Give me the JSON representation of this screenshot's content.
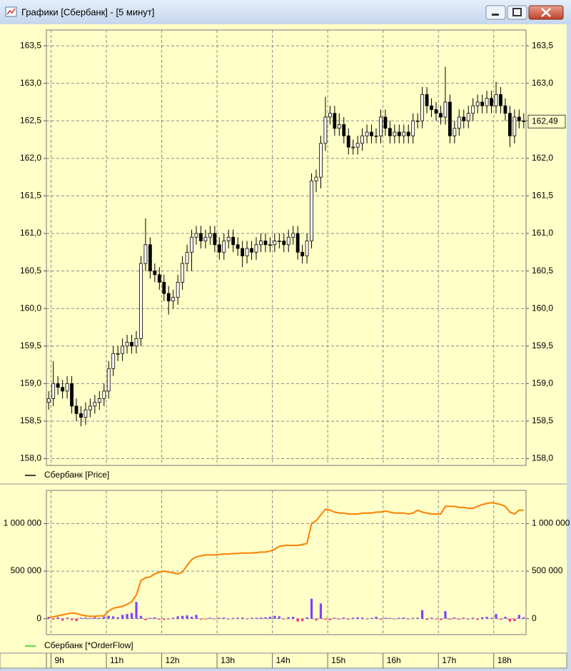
{
  "window_title": "Графики [Сбербанк] - [5 минут]",
  "chart_data": [
    {
      "type": "candlestick",
      "legend": {
        "label": "Сбербанк [Price]",
        "color": "#000000"
      },
      "up_color": "#ffffff",
      "down_color": "#000000",
      "ylim": [
        157.91,
        163.71
      ],
      "yticks": [
        {
          "value": 158,
          "label": "158,0"
        },
        {
          "value": 158.5,
          "label": "158,5"
        },
        {
          "value": 159,
          "label": "159,0"
        },
        {
          "value": 159.5,
          "label": "159,5"
        },
        {
          "value": 160,
          "label": "160,0"
        },
        {
          "value": 160.5,
          "label": "160,5"
        },
        {
          "value": 161,
          "label": "161,0"
        },
        {
          "value": 161.5,
          "label": "161,5"
        },
        {
          "value": 162,
          "label": "162,0"
        },
        {
          "value": 162.5,
          "label": "162,5"
        },
        {
          "value": 163,
          "label": "163,0"
        },
        {
          "value": 163.5,
          "label": "163,5"
        }
      ],
      "grid": true,
      "last_label": {
        "value": 162.49,
        "label": "162,49"
      },
      "open": [
        158.75,
        158.8,
        159.0,
        158.95,
        158.9,
        159.0,
        158.7,
        158.6,
        158.55,
        158.65,
        158.7,
        158.75,
        158.8,
        158.9,
        159.2,
        159.4,
        159.4,
        159.5,
        159.55,
        159.5,
        159.6,
        160.6,
        160.85,
        160.5,
        160.45,
        160.35,
        160.2,
        160.1,
        160.15,
        160.35,
        160.6,
        160.75,
        160.95,
        161.0,
        160.9,
        160.95,
        161.0,
        160.85,
        160.75,
        160.9,
        160.95,
        160.85,
        160.8,
        160.7,
        160.8,
        160.75,
        160.85,
        160.9,
        160.85,
        160.85,
        160.9,
        160.9,
        160.85,
        160.95,
        161.0,
        160.75,
        160.7,
        160.9,
        161.7,
        161.75,
        162.2,
        162.55,
        162.6,
        162.4,
        162.45,
        162.3,
        162.15,
        162.15,
        162.2,
        162.3,
        162.35,
        162.3,
        162.3,
        162.55,
        162.4,
        162.3,
        162.35,
        162.3,
        162.35,
        162.3,
        162.5,
        162.5,
        162.85,
        162.7,
        162.65,
        162.6,
        162.55,
        162.75,
        162.3,
        162.4,
        162.55,
        162.5,
        162.6,
        162.7,
        162.75,
        162.7,
        162.8,
        162.7,
        162.85,
        162.7,
        162.6,
        162.3,
        162.55,
        162.5
      ],
      "high": [
        158.9,
        159.3,
        159.1,
        159.05,
        159.1,
        159.1,
        158.8,
        158.7,
        158.75,
        158.8,
        158.85,
        158.9,
        159.0,
        159.3,
        159.5,
        159.5,
        159.6,
        159.65,
        159.65,
        159.7,
        160.7,
        161.2,
        160.95,
        160.6,
        160.55,
        160.45,
        160.3,
        160.25,
        160.45,
        160.7,
        160.85,
        161.05,
        161.1,
        161.1,
        161.05,
        161.1,
        161.1,
        160.95,
        161.0,
        161.05,
        161.05,
        160.95,
        160.9,
        160.9,
        160.9,
        160.95,
        161.0,
        161.0,
        160.95,
        161.0,
        161.0,
        161.0,
        161.05,
        161.1,
        161.1,
        160.85,
        161.0,
        161.8,
        161.85,
        162.3,
        162.82,
        162.7,
        162.7,
        162.6,
        162.55,
        162.4,
        162.25,
        162.3,
        162.4,
        162.45,
        162.45,
        162.4,
        162.65,
        162.65,
        162.5,
        162.45,
        162.45,
        162.45,
        162.45,
        162.6,
        162.6,
        162.95,
        162.95,
        162.8,
        162.75,
        162.7,
        163.22,
        162.85,
        162.5,
        162.65,
        162.65,
        162.7,
        162.8,
        162.85,
        162.85,
        162.9,
        162.9,
        163.02,
        162.95,
        162.8,
        162.7,
        162.65,
        162.65,
        162.6
      ],
      "low": [
        158.65,
        158.7,
        158.85,
        158.8,
        158.8,
        158.6,
        158.5,
        158.43,
        158.45,
        158.55,
        158.6,
        158.65,
        158.7,
        158.8,
        159.1,
        159.3,
        159.3,
        159.4,
        159.4,
        159.4,
        159.5,
        160.5,
        160.4,
        160.35,
        160.25,
        160.1,
        159.92,
        160.0,
        160.05,
        160.25,
        160.5,
        160.5,
        160.85,
        160.8,
        160.8,
        160.85,
        160.75,
        160.65,
        160.65,
        160.8,
        160.75,
        160.7,
        160.55,
        160.6,
        160.65,
        160.65,
        160.75,
        160.75,
        160.75,
        160.75,
        160.8,
        160.75,
        160.75,
        160.85,
        160.65,
        160.6,
        160.6,
        160.8,
        161.55,
        161.6,
        162.1,
        162.45,
        162.3,
        162.3,
        162.2,
        162.05,
        162.05,
        162.05,
        162.1,
        162.2,
        162.2,
        162.2,
        162.2,
        162.3,
        162.2,
        162.2,
        162.2,
        162.2,
        162.2,
        162.2,
        162.4,
        162.4,
        162.6,
        162.55,
        162.5,
        162.45,
        162.45,
        162.2,
        162.2,
        162.3,
        162.4,
        162.4,
        162.5,
        162.6,
        162.6,
        162.6,
        162.6,
        162.6,
        162.6,
        162.5,
        162.15,
        162.2,
        162.4,
        162.4
      ],
      "close": [
        158.8,
        159.0,
        158.95,
        158.9,
        159.0,
        158.7,
        158.6,
        158.55,
        158.65,
        158.7,
        158.75,
        158.8,
        158.9,
        159.2,
        159.4,
        159.4,
        159.5,
        159.55,
        159.5,
        159.6,
        160.6,
        160.85,
        160.5,
        160.45,
        160.35,
        160.2,
        160.1,
        160.15,
        160.35,
        160.6,
        160.75,
        160.95,
        161.0,
        160.9,
        160.95,
        161.0,
        160.85,
        160.75,
        160.9,
        160.95,
        160.85,
        160.8,
        160.7,
        160.8,
        160.75,
        160.85,
        160.9,
        160.85,
        160.85,
        160.9,
        160.9,
        160.85,
        160.95,
        161.0,
        160.75,
        160.7,
        160.9,
        161.7,
        161.75,
        162.2,
        162.55,
        162.6,
        162.4,
        162.45,
        162.3,
        162.15,
        162.15,
        162.2,
        162.3,
        162.35,
        162.3,
        162.3,
        162.55,
        162.4,
        162.3,
        162.35,
        162.3,
        162.35,
        162.3,
        162.5,
        162.5,
        162.85,
        162.7,
        162.65,
        162.6,
        162.55,
        162.75,
        162.3,
        162.4,
        162.55,
        162.5,
        162.6,
        162.7,
        162.75,
        162.7,
        162.8,
        162.7,
        162.85,
        162.7,
        162.6,
        162.3,
        162.55,
        162.5,
        162.49
      ]
    },
    {
      "type": "combo",
      "legend": {
        "label": "Сбербанк [*OrderFlow]",
        "color": "#22cc22"
      },
      "ylim": [
        -167000,
        1348000
      ],
      "yticks": [
        0,
        {
          "value": 500000,
          "label": "500 000"
        },
        {
          "value": 1000000,
          "label": "1 000 000"
        }
      ],
      "grid": true,
      "categories": [
        null,
        "9h",
        null,
        null,
        null,
        null,
        null,
        null,
        null,
        null,
        null,
        null,
        null,
        "11h",
        null,
        null,
        null,
        null,
        null,
        null,
        null,
        null,
        null,
        null,
        null,
        "12h",
        null,
        null,
        null,
        null,
        null,
        null,
        null,
        null,
        null,
        null,
        null,
        "13h",
        null,
        null,
        null,
        null,
        null,
        null,
        null,
        null,
        null,
        null,
        null,
        "14h",
        null,
        null,
        null,
        null,
        null,
        null,
        null,
        null,
        null,
        null,
        null,
        "15h",
        null,
        null,
        null,
        null,
        null,
        null,
        null,
        null,
        null,
        null,
        null,
        "16h",
        null,
        null,
        null,
        null,
        null,
        null,
        null,
        null,
        null,
        null,
        null,
        "17h",
        null,
        null,
        null,
        null,
        null,
        null,
        null,
        null,
        null,
        null,
        null,
        "18h",
        null,
        null,
        null,
        null,
        null,
        null
      ],
      "series": [
        {
          "type": "bar",
          "color": "#8040ff",
          "negative_color": "#ff3070",
          "values": [
            20000,
            -10000,
            15000,
            -20000,
            10000,
            -15000,
            -25000,
            10000,
            12000,
            8000,
            15000,
            10000,
            20000,
            30000,
            25000,
            15000,
            40000,
            50000,
            60000,
            175000,
            30000,
            -15000,
            10000,
            15000,
            -10000,
            -12000,
            -8000,
            10000,
            25000,
            30000,
            35000,
            20000,
            40000,
            -10000,
            -8000,
            10000,
            -5000,
            10000,
            12000,
            -6000,
            8000,
            10000,
            12000,
            -5000,
            9000,
            10000,
            12000,
            15000,
            20000,
            30000,
            25000,
            -8000,
            15000,
            20000,
            -30000,
            -25000,
            15000,
            210000,
            -20000,
            160000,
            -10000,
            -15000,
            10000,
            -8000,
            12000,
            -10000,
            10000,
            15000,
            12000,
            -6000,
            8000,
            20000,
            -10000,
            10000,
            8000,
            -5000,
            10000,
            12000,
            -5000,
            8000,
            10000,
            90000,
            -12000,
            10000,
            -8000,
            -15000,
            80000,
            -10000,
            12000,
            -10000,
            10000,
            -8000,
            10000,
            -12000,
            15000,
            20000,
            10000,
            50000,
            -10000,
            20000,
            -30000,
            -25000,
            40000,
            15000
          ]
        },
        {
          "type": "line",
          "color": "#ff7f00",
          "values": [
            10000,
            20000,
            30000,
            40000,
            50000,
            60000,
            55000,
            40000,
            30000,
            25000,
            25000,
            30000,
            30000,
            80000,
            110000,
            120000,
            130000,
            150000,
            180000,
            250000,
            400000,
            430000,
            440000,
            470000,
            490000,
            500000,
            490000,
            480000,
            470000,
            490000,
            560000,
            620000,
            650000,
            660000,
            670000,
            670000,
            670000,
            675000,
            680000,
            680000,
            685000,
            685000,
            690000,
            690000,
            690000,
            695000,
            700000,
            700000,
            710000,
            730000,
            760000,
            770000,
            770000,
            770000,
            770000,
            780000,
            790000,
            1000000,
            1030000,
            1090000,
            1150000,
            1140000,
            1120000,
            1110000,
            1110000,
            1100000,
            1100000,
            1100000,
            1110000,
            1110000,
            1110000,
            1120000,
            1120000,
            1130000,
            1120000,
            1110000,
            1110000,
            1110000,
            1100000,
            1110000,
            1140000,
            1120000,
            1110000,
            1100000,
            1100000,
            1100000,
            1180000,
            1180000,
            1180000,
            1170000,
            1170000,
            1160000,
            1160000,
            1180000,
            1200000,
            1210000,
            1220000,
            1210000,
            1200000,
            1180000,
            1120000,
            1100000,
            1140000,
            1140000
          ]
        }
      ]
    }
  ]
}
